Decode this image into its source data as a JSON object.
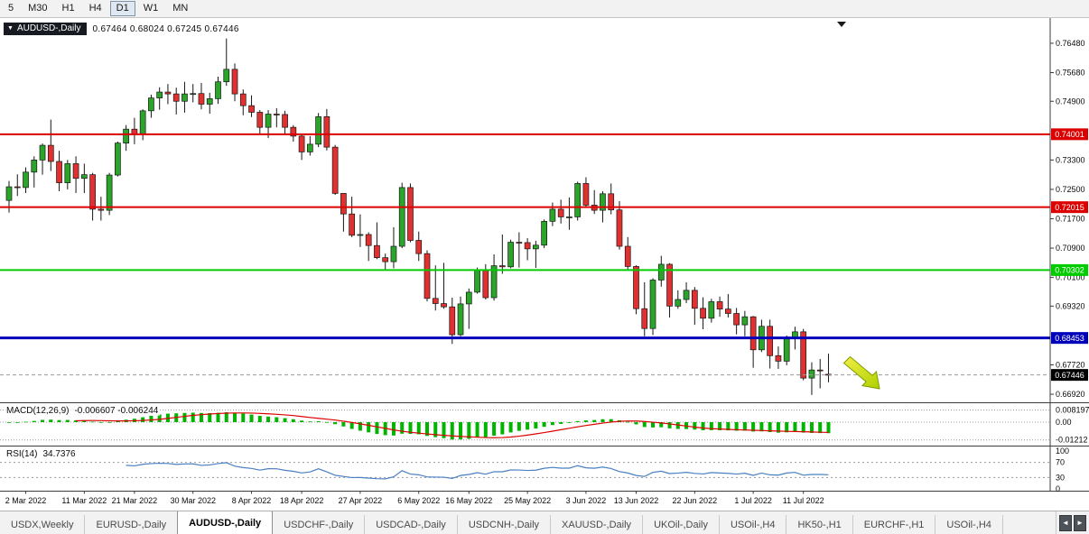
{
  "toolbar": {
    "periods": [
      "5",
      "M30",
      "H1",
      "H4",
      "D1",
      "W1",
      "MN"
    ],
    "active": "D1"
  },
  "chart": {
    "symbol_label": "AUDUSD-,Daily",
    "dropdown_icon": "▼",
    "ohlc_text": "0.67464 0.68024 0.67245 0.67446"
  },
  "indicators": {
    "macd_label": "MACD(12,26,9)",
    "macd_values": "-0.006607 -0.006244",
    "rsi_label": "RSI(14)",
    "rsi_value": "34.7376"
  },
  "tabbar": {
    "tabs": [
      "USDX,Weekly",
      "EURUSD-,Daily",
      "AUDUSD-,Daily",
      "USDCHF-,Daily",
      "USDCAD-,Daily",
      "USDCNH-,Daily",
      "XAUUSD-,Daily",
      "UKOil-,Daily",
      "USOil-,H4",
      "HK50-,H1",
      "EURCHF-,H1",
      "USOil-,H4"
    ],
    "active_index": 2,
    "left_arrow": "◄",
    "right_arrow": "►"
  },
  "colors": {
    "bull": "#2aa52a",
    "bear": "#e03030",
    "wick": "#161616",
    "macd_hist": "#00b400",
    "macd_signal": "#dd0000",
    "rsi_line": "#4a7fc1",
    "badge_text": "#ffffff",
    "current_badge": "#000000",
    "axis_text": "#0a0a0a",
    "frame": "#3c3c3c",
    "arrow_fill_top": "#f2ee45",
    "arrow_fill_bottom": "#aed000",
    "arrow_edge": "#7e9c00"
  },
  "chart_data": {
    "type": "candlestick",
    "title": "AUDUSD-,Daily",
    "last_bar": {
      "open": 0.67464,
      "high": 0.68024,
      "low": 0.67245,
      "close": 0.67446
    },
    "price_axis": {
      "min": 0.667,
      "max": 0.7697,
      "ticks": [
        "0.76480",
        "0.75680",
        "0.74900",
        "0.73300",
        "0.72500",
        "0.71700",
        "0.70900",
        "0.70100",
        "0.69320",
        "0.67720",
        "0.66920"
      ]
    },
    "hlines": [
      {
        "price": 0.74001,
        "label": "0.74001",
        "color": "#dd0000",
        "width": 2
      },
      {
        "price": 0.72015,
        "label": "0.72015",
        "color": "#dd0000",
        "width": 2
      },
      {
        "price": 0.70302,
        "label": "0.70302",
        "color": "#00cc00",
        "width": 2
      },
      {
        "price": 0.68453,
        "label": "0.68453",
        "color": "#0000bb",
        "width": 3
      }
    ],
    "current_price": {
      "price": 0.67446,
      "label": "0.67446"
    },
    "date_ticks": [
      {
        "i": 2,
        "label": "2 Mar 2022"
      },
      {
        "i": 9,
        "label": "11 Mar 2022"
      },
      {
        "i": 15,
        "label": "21 Mar 2022"
      },
      {
        "i": 22,
        "label": "30 Mar 2022"
      },
      {
        "i": 29,
        "label": "8 Apr 2022"
      },
      {
        "i": 35,
        "label": "18 Apr 2022"
      },
      {
        "i": 42,
        "label": "27 Apr 2022"
      },
      {
        "i": 49,
        "label": "6 May 2022"
      },
      {
        "i": 55,
        "label": "16 May 2022"
      },
      {
        "i": 62,
        "label": "25 May 2022"
      },
      {
        "i": 69,
        "label": "3 Jun 2022"
      },
      {
        "i": 75,
        "label": "13 Jun 2022"
      },
      {
        "i": 82,
        "label": "22 Jun 2022"
      },
      {
        "i": 89,
        "label": "1 Jul 2022"
      },
      {
        "i": 95,
        "label": "11 Jul 2022"
      }
    ],
    "macd": {
      "params": [
        12,
        26,
        9
      ],
      "display_values": [
        "-0.006607",
        "-0.006244"
      ],
      "scale_ticks": [
        {
          "v": 0.008197,
          "label": "0.008197"
        },
        {
          "v": 0,
          "label": "0.00"
        },
        {
          "v": -0.01212,
          "label": "-0.01212"
        }
      ]
    },
    "rsi": {
      "period": 14,
      "display_value": "34.7376",
      "scale_ticks": [
        {
          "v": 100,
          "label": "100"
        },
        {
          "v": 70,
          "label": "70"
        },
        {
          "v": 30,
          "label": "30"
        },
        {
          "v": 0,
          "label": "0"
        }
      ],
      "level_lines": [
        70,
        30
      ]
    },
    "candles": [
      [
        0.722,
        0.7273,
        0.7187,
        0.7257
      ],
      [
        0.7257,
        0.7291,
        0.7232,
        0.7255
      ],
      [
        0.7255,
        0.731,
        0.724,
        0.7297
      ],
      [
        0.7297,
        0.734,
        0.7255,
        0.733
      ],
      [
        0.733,
        0.7375,
        0.729,
        0.737
      ],
      [
        0.737,
        0.744,
        0.73,
        0.7326
      ],
      [
        0.7326,
        0.7355,
        0.7245,
        0.7268
      ],
      [
        0.7268,
        0.733,
        0.725,
        0.732
      ],
      [
        0.732,
        0.734,
        0.724,
        0.728
      ],
      [
        0.728,
        0.732,
        0.724,
        0.729
      ],
      [
        0.729,
        0.7295,
        0.7165,
        0.7196
      ],
      [
        0.7196,
        0.723,
        0.7165,
        0.7193
      ],
      [
        0.7193,
        0.7295,
        0.718,
        0.7289
      ],
      [
        0.7289,
        0.738,
        0.7285,
        0.7376
      ],
      [
        0.7376,
        0.7425,
        0.7355,
        0.7414
      ],
      [
        0.7414,
        0.7445,
        0.7373,
        0.74
      ],
      [
        0.74,
        0.7468,
        0.7384,
        0.7464
      ],
      [
        0.7464,
        0.7508,
        0.7445,
        0.7499
      ],
      [
        0.7499,
        0.7528,
        0.7467,
        0.7515
      ],
      [
        0.7515,
        0.7537,
        0.7482,
        0.751
      ],
      [
        0.751,
        0.7527,
        0.7454,
        0.749
      ],
      [
        0.749,
        0.7543,
        0.7459,
        0.751
      ],
      [
        0.751,
        0.7537,
        0.7487,
        0.7511
      ],
      [
        0.7511,
        0.754,
        0.7468,
        0.7482
      ],
      [
        0.7482,
        0.7513,
        0.7456,
        0.7497
      ],
      [
        0.7497,
        0.7557,
        0.7483,
        0.7543
      ],
      [
        0.7543,
        0.7661,
        0.7532,
        0.7577
      ],
      [
        0.7577,
        0.7593,
        0.749,
        0.751
      ],
      [
        0.751,
        0.7522,
        0.7452,
        0.7478
      ],
      [
        0.7478,
        0.7506,
        0.7447,
        0.746
      ],
      [
        0.746,
        0.7466,
        0.7399,
        0.7419
      ],
      [
        0.7419,
        0.7466,
        0.739,
        0.7455
      ],
      [
        0.7455,
        0.7471,
        0.7419,
        0.7454
      ],
      [
        0.7454,
        0.7464,
        0.7398,
        0.7419
      ],
      [
        0.7419,
        0.7425,
        0.738,
        0.7395
      ],
      [
        0.7395,
        0.74,
        0.733,
        0.7352
      ],
      [
        0.7352,
        0.7395,
        0.7342,
        0.7373
      ],
      [
        0.7373,
        0.7458,
        0.7365,
        0.7448
      ],
      [
        0.7448,
        0.7469,
        0.7356,
        0.7365
      ],
      [
        0.7365,
        0.7371,
        0.7235,
        0.7239
      ],
      [
        0.7239,
        0.724,
        0.7135,
        0.7183
      ],
      [
        0.7183,
        0.723,
        0.712,
        0.7125
      ],
      [
        0.7125,
        0.7182,
        0.7093,
        0.7127
      ],
      [
        0.7127,
        0.7133,
        0.7055,
        0.7097
      ],
      [
        0.7097,
        0.716,
        0.706,
        0.7064
      ],
      [
        0.7064,
        0.7075,
        0.7029,
        0.7053
      ],
      [
        0.7053,
        0.7147,
        0.7035,
        0.7095
      ],
      [
        0.7095,
        0.7268,
        0.709,
        0.7255
      ],
      [
        0.7255,
        0.7266,
        0.7106,
        0.7111
      ],
      [
        0.7111,
        0.7135,
        0.7055,
        0.7075
      ],
      [
        0.7075,
        0.7084,
        0.6945,
        0.6953
      ],
      [
        0.6953,
        0.7043,
        0.692,
        0.6939
      ],
      [
        0.6939,
        0.705,
        0.6925,
        0.693
      ],
      [
        0.693,
        0.6955,
        0.6829,
        0.6854
      ],
      [
        0.6854,
        0.6958,
        0.685,
        0.6938
      ],
      [
        0.6938,
        0.698,
        0.687,
        0.697
      ],
      [
        0.697,
        0.7037,
        0.6966,
        0.7029
      ],
      [
        0.7029,
        0.7046,
        0.695,
        0.6955
      ],
      [
        0.6955,
        0.7073,
        0.6947,
        0.7042
      ],
      [
        0.7042,
        0.7127,
        0.702,
        0.7039
      ],
      [
        0.7039,
        0.7113,
        0.7035,
        0.7106
      ],
      [
        0.7106,
        0.7133,
        0.7037,
        0.7105
      ],
      [
        0.7105,
        0.7117,
        0.7057,
        0.7088
      ],
      [
        0.7088,
        0.711,
        0.7036,
        0.7098
      ],
      [
        0.7098,
        0.7168,
        0.709,
        0.7163
      ],
      [
        0.7163,
        0.7214,
        0.715,
        0.7196
      ],
      [
        0.7196,
        0.7222,
        0.7157,
        0.7175
      ],
      [
        0.7175,
        0.7228,
        0.714,
        0.7175
      ],
      [
        0.7175,
        0.7271,
        0.7165,
        0.7266
      ],
      [
        0.7266,
        0.7283,
        0.72,
        0.7207
      ],
      [
        0.7207,
        0.7248,
        0.7183,
        0.7193
      ],
      [
        0.7193,
        0.7245,
        0.716,
        0.7238
      ],
      [
        0.7238,
        0.7266,
        0.7182,
        0.7194
      ],
      [
        0.7194,
        0.7218,
        0.7086,
        0.7095
      ],
      [
        0.7095,
        0.712,
        0.7032,
        0.704
      ],
      [
        0.704,
        0.7043,
        0.691,
        0.6925
      ],
      [
        0.6925,
        0.6997,
        0.685,
        0.6871
      ],
      [
        0.6871,
        0.7008,
        0.6853,
        0.7003
      ],
      [
        0.7003,
        0.7069,
        0.6985,
        0.7046
      ],
      [
        0.7046,
        0.7049,
        0.6901,
        0.6932
      ],
      [
        0.6932,
        0.6975,
        0.6925,
        0.695
      ],
      [
        0.695,
        0.6997,
        0.694,
        0.6975
      ],
      [
        0.6975,
        0.6984,
        0.6881,
        0.6926
      ],
      [
        0.6926,
        0.6956,
        0.6869,
        0.6899
      ],
      [
        0.6899,
        0.6952,
        0.6887,
        0.6944
      ],
      [
        0.6944,
        0.6958,
        0.6903,
        0.6924
      ],
      [
        0.6924,
        0.6965,
        0.6901,
        0.6912
      ],
      [
        0.6912,
        0.6927,
        0.6855,
        0.6881
      ],
      [
        0.6881,
        0.6919,
        0.685,
        0.6903
      ],
      [
        0.6903,
        0.6905,
        0.6764,
        0.6813
      ],
      [
        0.6813,
        0.6895,
        0.6807,
        0.6877
      ],
      [
        0.6877,
        0.6895,
        0.6762,
        0.6797
      ],
      [
        0.6797,
        0.6822,
        0.6761,
        0.6782
      ],
      [
        0.6782,
        0.6852,
        0.6771,
        0.6843
      ],
      [
        0.6843,
        0.6876,
        0.6814,
        0.6862
      ],
      [
        0.6862,
        0.687,
        0.673,
        0.6736
      ],
      [
        0.6736,
        0.6779,
        0.669,
        0.6758
      ],
      [
        0.6758,
        0.6788,
        0.6708,
        0.6757
      ],
      [
        0.67464,
        0.68024,
        0.67245,
        0.67446
      ]
    ]
  }
}
